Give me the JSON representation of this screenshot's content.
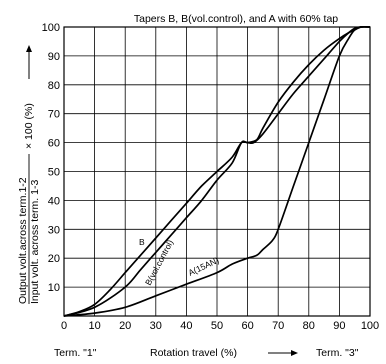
{
  "chart_data": {
    "type": "line",
    "title": "Tapers B, B(vol.control), and A with 60% tap",
    "ylabel_line1": "Output volt.across term.1-2",
    "ylabel_line2": "Input volt. across term. 1-3",
    "ylabel_suffix": "× 100 (%)",
    "xlabel": "Rotation travel (%)",
    "x_left_label": "Term. \"1\"",
    "x_right_label": "Term. \"3\"",
    "xlim": [
      0,
      100
    ],
    "ylim": [
      0,
      100
    ],
    "xticks": [
      0,
      10,
      20,
      30,
      40,
      50,
      60,
      70,
      80,
      90,
      100
    ],
    "yticks": [
      10,
      20,
      30,
      40,
      50,
      60,
      70,
      80,
      90,
      100
    ],
    "grid": true,
    "series": [
      {
        "name": "B",
        "x": [
          0,
          5,
          10,
          15,
          20,
          25,
          30,
          35,
          40,
          45,
          50,
          55,
          58,
          60,
          62,
          65,
          70,
          75,
          80,
          85,
          90,
          93,
          95,
          97,
          100
        ],
        "y": [
          0,
          1.5,
          4,
          9,
          15,
          21,
          27,
          33,
          39,
          45,
          50,
          55,
          60,
          60,
          60,
          63,
          70,
          77,
          83,
          89,
          95,
          98,
          99.5,
          100,
          100
        ]
      },
      {
        "name": "B(vol.control)",
        "x": [
          0,
          10,
          20,
          25,
          30,
          35,
          40,
          45,
          50,
          55,
          58,
          60,
          63,
          65,
          70,
          75,
          80,
          85,
          90,
          93,
          95,
          97,
          100
        ],
        "y": [
          0,
          3,
          10,
          16,
          22,
          28,
          34,
          40,
          47,
          53,
          60,
          60,
          61,
          65,
          74,
          81,
          87,
          92,
          96,
          98,
          99,
          100,
          100
        ]
      },
      {
        "name": "A(15AN)",
        "x": [
          0,
          10,
          20,
          30,
          40,
          50,
          55,
          60,
          63,
          65,
          68,
          70,
          75,
          80,
          85,
          90,
          93,
          95,
          97,
          100
        ],
        "y": [
          0,
          1,
          3,
          7,
          11,
          15,
          18,
          20,
          21,
          23,
          26,
          30,
          45,
          60,
          75,
          90,
          96,
          99,
          100,
          100
        ]
      }
    ]
  }
}
